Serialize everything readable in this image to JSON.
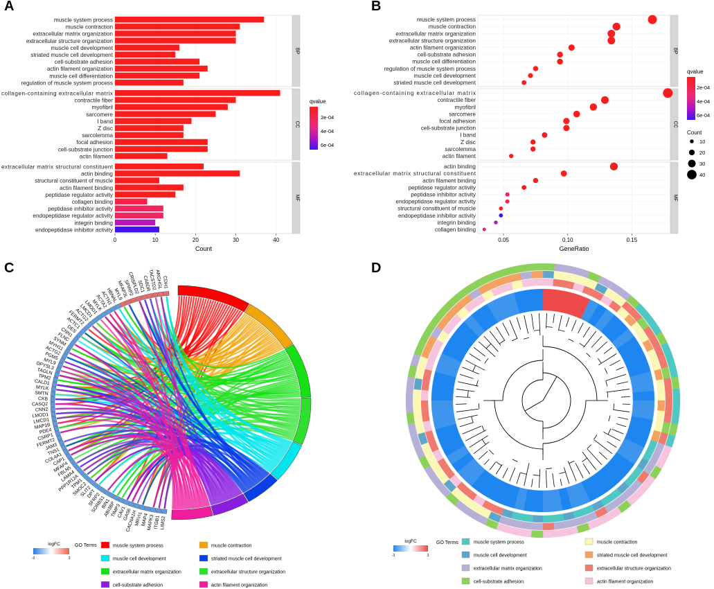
{
  "panels": {
    "a": "A",
    "b": "B",
    "c": "C",
    "d": "D"
  },
  "colors": {
    "high": "#f91e1e",
    "mid": "#e0337a",
    "low": "#3c16f0",
    "strip": "#d6d6d6",
    "grid": "#ececec"
  },
  "chart_data": [
    {
      "type": "bar",
      "orientation": "horizontal",
      "title": "A",
      "xlabel": "Count",
      "ylabel": "",
      "xlim": [
        0,
        44
      ],
      "xticks": [
        0,
        10,
        20,
        30,
        40
      ],
      "legend": {
        "title": "qvalue",
        "labels": [
          "2e-04",
          "4e-04",
          "6e-04"
        ],
        "position": "right"
      },
      "facets": [
        {
          "label": "BP",
          "categories": [
            "muscle system process",
            "muscle contraction",
            "extracellular matrix organization",
            "extracellular structure organization",
            "muscle cell development",
            "striated muscle cell development",
            "cell-substrate adhesion",
            "actin filament organization",
            "muscle cell differentiation",
            "regulation of muscle system process"
          ],
          "values": [
            37,
            31,
            30,
            30,
            16,
            15,
            21,
            23,
            21,
            17
          ],
          "qvalue": [
            1e-05,
            1e-05,
            1e-05,
            1e-05,
            1e-05,
            1e-05,
            1e-05,
            1e-05,
            1e-05,
            1e-05
          ]
        },
        {
          "label": "CC",
          "categories": [
            "collagen-containing extracellular matrix",
            "contractile fiber",
            "myofibril",
            "sarcomere",
            "I band",
            "Z disc",
            "sarcolemma",
            "focal adhesion",
            "cell-substrate junction",
            "actin filament"
          ],
          "values": [
            41,
            30,
            28,
            25,
            19,
            17,
            17,
            23,
            23,
            13
          ],
          "qvalue": [
            1e-05,
            1e-05,
            1e-05,
            1e-05,
            1e-05,
            1e-05,
            1e-05,
            1e-05,
            1e-05,
            1e-05
          ]
        },
        {
          "label": "MF",
          "categories": [
            "extracellular matrix structural constituent",
            "actin binding",
            "structural constituent of muscle",
            "actin filament binding",
            "peptidase regulator activity",
            "collagen binding",
            "peptidase inhibitor activity",
            "endopeptidase regulator activity",
            "integrin binding",
            "endopeptidase inhibitor activity"
          ],
          "values": [
            22,
            31,
            11,
            17,
            15,
            8,
            12,
            12,
            10,
            11
          ],
          "qvalue": [
            1e-05,
            1e-05,
            1e-05,
            1e-05,
            1e-05,
            0.00012,
            0.00018,
            0.00018,
            0.0004,
            0.00065
          ]
        }
      ]
    },
    {
      "type": "scatter",
      "title": "B",
      "xlabel": "GeneRatio",
      "ylabel": "",
      "xlim": [
        0.03,
        0.18
      ],
      "xticks": [
        0.05,
        0.1,
        0.15
      ],
      "xtick_labels": [
        "0.05",
        "0.10",
        "0.15"
      ],
      "legend": {
        "color_title": "qvalue",
        "color_labels": [
          "2e-04",
          "4e-04",
          "6e-04"
        ],
        "size_title": "Count",
        "size_labels": [
          "10",
          "20",
          "30",
          "40"
        ],
        "size_values": [
          10,
          20,
          30,
          40
        ],
        "position": "right"
      },
      "facets": [
        {
          "label": "BP",
          "categories": [
            "muscle system process",
            "muscle contraction",
            "extracellular matrix organization",
            "extracellular structure organization",
            "actin filament organization",
            "cell-substrate adhesion",
            "muscle cell differentiation",
            "regulation of muscle system process",
            "muscle cell development",
            "striated muscle cell development"
          ],
          "x": [
            0.166,
            0.138,
            0.134,
            0.134,
            0.103,
            0.094,
            0.094,
            0.075,
            0.071,
            0.066
          ],
          "count": [
            37,
            31,
            30,
            30,
            23,
            21,
            21,
            17,
            16,
            15
          ],
          "qvalue": [
            1e-05,
            1e-05,
            1e-05,
            1e-05,
            1e-05,
            1e-05,
            1e-05,
            1e-05,
            1e-05,
            1e-05
          ]
        },
        {
          "label": "CC",
          "categories": [
            "collagen-containing extracellular matrix",
            "contractile fiber",
            "myofibril",
            "sarcomere",
            "focal adhesion",
            "cell-substrate junction",
            "I band",
            "Z disc",
            "sarcolemma",
            "actin filament"
          ],
          "x": [
            0.178,
            0.129,
            0.12,
            0.107,
            0.099,
            0.099,
            0.082,
            0.073,
            0.073,
            0.056
          ],
          "count": [
            41,
            30,
            28,
            25,
            23,
            23,
            19,
            17,
            17,
            13
          ],
          "qvalue": [
            1e-05,
            1e-05,
            1e-05,
            1e-05,
            1e-05,
            1e-05,
            1e-05,
            1e-05,
            1e-05,
            1e-05
          ]
        },
        {
          "label": "MF",
          "categories": [
            "actin binding",
            "extracellular matrix structural constituent",
            "actin filament binding",
            "peptidase regulator activity",
            "peptidase inhibitor activity",
            "endopeptidase regulator activity",
            "structural constituent of muscle",
            "endopeptidase inhibitor activity",
            "integrin binding",
            "collagen binding"
          ],
          "x": [
            0.136,
            0.097,
            0.075,
            0.066,
            0.053,
            0.053,
            0.048,
            0.048,
            0.044,
            0.035
          ],
          "count": [
            31,
            22,
            17,
            15,
            12,
            12,
            11,
            11,
            10,
            8
          ],
          "qvalue": [
            1e-05,
            1e-05,
            1e-05,
            1e-05,
            0.00018,
            0.00018,
            1e-05,
            0.00065,
            0.0004,
            0.00012
          ]
        }
      ]
    },
    {
      "type": "chord",
      "title": "C",
      "genes": [
        "CDH1",
        "ARGHGL",
        "TACSTD2",
        "CA8DR",
        "SDC1",
        "CRISPLD2",
        "SPIRP2",
        "MFAP3L",
        "MYL9",
        "HBNAL",
        "ACTN1",
        "ACTA2",
        "MYLK",
        "LMOD1",
        "LMCD1",
        "ACTG2",
        "FERMT2",
        "ACTC1",
        "DES",
        "CNN1",
        "FLNC",
        "SYNM",
        "MYH11",
        "ACTG2",
        "PGM5",
        "MYL9",
        "DPYSL3",
        "TAGLN",
        "TPM2",
        "CALD1",
        "MYLK",
        "SMTN",
        "CKB",
        "CASQ2",
        "CNN2",
        "LMOD1",
        "LMCD1",
        "MAP1B",
        "PDE4",
        "CSRP1",
        "FERMT2",
        "JAM3",
        "TNS1",
        "COL4A1",
        "CAP1",
        "MFAP4",
        "FBLN5",
        "LAMA4",
        "PPP1R12A",
        "TPM1",
        "SMOC2",
        "SLIT2",
        "DPT",
        "SFRP2",
        "SORBS1",
        "BIN1",
        "ABI3BP",
        "TIMP3",
        "CAV1",
        "GAS6",
        "CACNA1H",
        "MRVI1",
        "MAP4",
        "MAPK3",
        "ITGB1",
        "LIMS2"
      ],
      "logfc_legend": {
        "title": "logFC",
        "min_label": "-3",
        "max_label": "3"
      },
      "terms_title": "GO Terms",
      "terms": [
        {
          "label": "muscle system process",
          "color": "#ff0000"
        },
        {
          "label": "muscle contraction",
          "color": "#f0a50a"
        },
        {
          "label": "muscle cell development",
          "color": "#00e6ec"
        },
        {
          "label": "striated muscle cell development",
          "color": "#0a3ee6"
        },
        {
          "label": "extracellular matrix organization",
          "color": "#15e015"
        },
        {
          "label": "extracellular structure organization",
          "color": "#2ee02e"
        },
        {
          "label": "cell-substrate adhesion",
          "color": "#8a1ee0"
        },
        {
          "label": "actin filament organization",
          "color": "#f01e9e"
        }
      ]
    },
    {
      "type": "circular_dendrogram_heatmap",
      "title": "D",
      "logfc_legend": {
        "title": "logFC",
        "min_label": "-3",
        "max_label": "3"
      },
      "terms_title": "GO Terms",
      "terms": [
        {
          "label": "muscle system process",
          "color": "#4fc7c2"
        },
        {
          "label": "muscle contraction",
          "color": "#fbf7b5"
        },
        {
          "label": "muscle cell development",
          "color": "#5ea6c9"
        },
        {
          "label": "striated muscle cell development",
          "color": "#f4a261"
        },
        {
          "label": "extracellular matrix organization",
          "color": "#b7b0d6"
        },
        {
          "label": "extracellular structure organization",
          "color": "#ef7a6d"
        },
        {
          "label": "cell-substrate adhesion",
          "color": "#8dd15a"
        },
        {
          "label": "actin filament organization",
          "color": "#f7c4dd"
        }
      ]
    }
  ]
}
